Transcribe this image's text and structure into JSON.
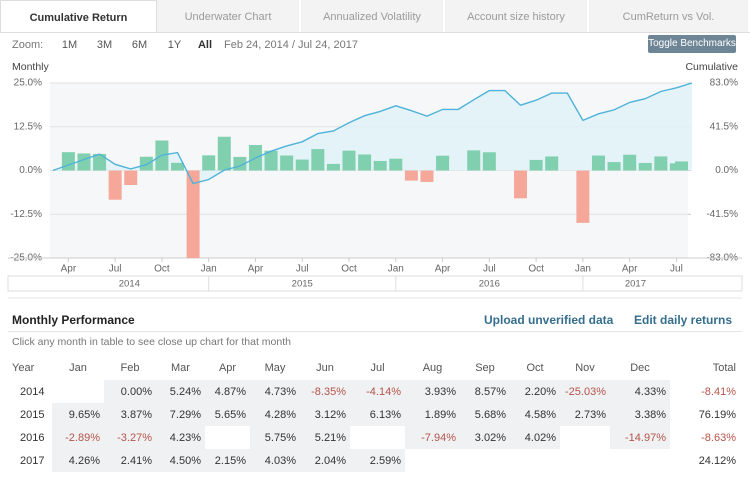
{
  "tabs": [
    "Cumulative Return",
    "Underwater Chart",
    "Annualized Volatility",
    "Account size history",
    "CumReturn vs Vol."
  ],
  "zoom": {
    "label": "Zoom:",
    "options": [
      "1M",
      "3M",
      "6M",
      "1Y",
      "All"
    ],
    "range": "Feb 24, 2014 / Jul 24, 2017"
  },
  "toggle_button": "Toggle Benchmarks",
  "chart_data": {
    "type": "bar",
    "y_label": "Monthly",
    "y2_label": "Cumulative",
    "x": [
      "2014-02",
      "2014-03",
      "2014-04",
      "2014-05",
      "2014-06",
      "2014-07",
      "2014-08",
      "2014-09",
      "2014-10",
      "2014-11",
      "2014-12",
      "2015-01",
      "2015-02",
      "2015-03",
      "2015-04",
      "2015-05",
      "2015-06",
      "2015-07",
      "2015-08",
      "2015-09",
      "2015-10",
      "2015-11",
      "2015-12",
      "2016-01",
      "2016-02",
      "2016-03",
      "2016-04",
      "2016-05",
      "2016-06",
      "2016-07",
      "2016-08",
      "2016-09",
      "2016-10",
      "2016-11",
      "2016-12",
      "2017-01",
      "2017-02",
      "2017-03",
      "2017-04",
      "2017-05",
      "2017-06",
      "2017-07"
    ],
    "xlim": [
      "2014-02-24",
      "2017-07-24"
    ],
    "xticks": [
      {
        "value": "2014-04-01",
        "label": "Apr"
      },
      {
        "value": "2014-07-01",
        "label": "Jul"
      },
      {
        "value": "2014-10-01",
        "label": "Oct"
      },
      {
        "value": "2015-01-01",
        "label": "Jan"
      },
      {
        "value": "2015-04-01",
        "label": "Apr"
      },
      {
        "value": "2015-07-01",
        "label": "Jul"
      },
      {
        "value": "2015-10-01",
        "label": "Oct"
      },
      {
        "value": "2016-01-01",
        "label": "Jan"
      },
      {
        "value": "2016-04-01",
        "label": "Apr"
      },
      {
        "value": "2016-07-01",
        "label": "Jul"
      },
      {
        "value": "2016-10-01",
        "label": "Oct"
      },
      {
        "value": "2017-01-01",
        "label": "Jan"
      },
      {
        "value": "2017-04-01",
        "label": "Apr"
      },
      {
        "value": "2017-07-01",
        "label": "Jul"
      }
    ],
    "years": [
      "2014",
      "2015",
      "2016",
      "2017"
    ],
    "ylim": [
      -25,
      25
    ],
    "yticks": [
      {
        "value": 25,
        "label": "25.0%"
      },
      {
        "value": 12.5,
        "label": "12.5%"
      },
      {
        "value": 0,
        "label": "0.0%"
      },
      {
        "value": -12.5,
        "label": "-12.5%"
      },
      {
        "value": -25,
        "label": "-25.0%"
      }
    ],
    "y2lim": [
      -83,
      83
    ],
    "y2ticks": [
      {
        "value": 83,
        "label": "83.0%"
      },
      {
        "value": 41.5,
        "label": "41.5%"
      },
      {
        "value": 0,
        "label": "0.0%"
      },
      {
        "value": -41.5,
        "label": "-41.5%"
      },
      {
        "value": -83,
        "label": "-83.0%"
      }
    ],
    "grid": true,
    "series": [
      {
        "type": "bar",
        "color": "#80d0b0",
        "negative_color": "#f5a89a",
        "values": [
          0,
          5.24,
          4.87,
          4.73,
          -8.35,
          -4.14,
          3.93,
          8.57,
          2.2,
          -25.03,
          4.33,
          9.65,
          3.87,
          7.29,
          5.65,
          4.28,
          3.12,
          6.13,
          1.89,
          5.68,
          4.58,
          2.73,
          3.38,
          -2.89,
          -3.27,
          4.23,
          null,
          5.75,
          5.21,
          null,
          -7.94,
          3.02,
          4.02,
          null,
          -14.97,
          4.26,
          2.41,
          4.5,
          2.15,
          4.03,
          2.04,
          2.59
        ]
      },
      {
        "type": "line",
        "axis": "y2",
        "color": "#4fb3d9",
        "fill": "#dff2f8",
        "values": [
          0,
          5.2,
          10.4,
          15.6,
          5.9,
          1.5,
          5.5,
          14.5,
          17.0,
          -12.3,
          -8.5,
          0.4,
          4.3,
          11.9,
          18.3,
          23.3,
          27.2,
          35.0,
          37.5,
          45.3,
          52.0,
          56.1,
          61.4,
          56.7,
          51.6,
          58.0,
          58.0,
          67.1,
          75.8,
          75.8,
          61.9,
          66.7,
          73.4,
          73.4,
          47.5,
          53.8,
          57.5,
          64.6,
          68.1,
          74.9,
          78.4,
          83.0
        ]
      }
    ]
  },
  "monthly_performance": {
    "title": "Monthly Performance",
    "links": [
      "Upload unverified data",
      "Edit daily returns"
    ],
    "note": "Click any month in table to see close up chart for that month",
    "table": {
      "header": [
        "Year",
        "Jan",
        "Feb",
        "Mar",
        "Apr",
        "May",
        "Jun",
        "Jul",
        "Aug",
        "Sep",
        "Oct",
        "Nov",
        "Dec",
        "Total"
      ],
      "rows": [
        [
          "2014",
          null,
          "0.00%",
          "5.24%",
          "4.87%",
          "4.73%",
          "-8.35%",
          "-4.14%",
          "3.93%",
          "8.57%",
          "2.20%",
          "-25.03%",
          "4.33%",
          "-8.41%"
        ],
        [
          "2015",
          "9.65%",
          "3.87%",
          "7.29%",
          "5.65%",
          "4.28%",
          "3.12%",
          "6.13%",
          "1.89%",
          "5.68%",
          "4.58%",
          "2.73%",
          "3.38%",
          "76.19%"
        ],
        [
          "2016",
          "-2.89%",
          "-3.27%",
          "4.23%",
          null,
          "5.75%",
          "5.21%",
          null,
          "-7.94%",
          "3.02%",
          "4.02%",
          null,
          "-14.97%",
          "-8.63%"
        ],
        [
          "2017",
          "4.26%",
          "2.41%",
          "4.50%",
          "2.15%",
          "4.03%",
          "2.04%",
          "2.59%",
          null,
          null,
          null,
          null,
          null,
          "24.12%"
        ]
      ]
    }
  }
}
